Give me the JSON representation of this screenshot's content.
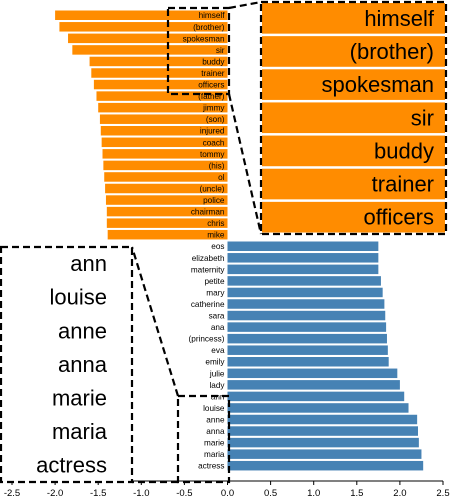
{
  "chart_data": {
    "type": "bar",
    "orientation": "horizontal",
    "colors": {
      "negative": "#ff8c00",
      "positive": "#4682b4",
      "axis": "#000000",
      "inset_border": "#000000"
    },
    "xlim": [
      -2.5,
      2.5
    ],
    "x_ticks": [
      "-2.5",
      "-2.0",
      "-1.5",
      "-1.0",
      "-0.5",
      "0.0",
      "0.5",
      "1.0",
      "1.5",
      "2.0",
      "2.5"
    ],
    "tick_values": [
      -2.5,
      -2.0,
      -1.5,
      -1.0,
      -0.5,
      0.0,
      0.5,
      1.0,
      1.5,
      2.0,
      2.5
    ],
    "categories": [
      "himself",
      "(brother)",
      "spokesman",
      "sir",
      "buddy",
      "trainer",
      "officers",
      "(father)",
      "jimmy",
      "(son)",
      "injured",
      "coach",
      "tommy",
      "(his)",
      "ol",
      "(uncle)",
      "police",
      "chairman",
      "chris",
      "mike",
      "eos",
      "elizabeth",
      "maternity",
      "petite",
      "mary",
      "catherine",
      "sara",
      "ana",
      "(princess)",
      "eva",
      "emily",
      "julie",
      "lady",
      "ann",
      "louise",
      "anne",
      "anna",
      "marie",
      "maria",
      "actress"
    ],
    "values": [
      -2.0,
      -1.95,
      -1.85,
      -1.8,
      -1.6,
      -1.58,
      -1.55,
      -1.52,
      -1.5,
      -1.48,
      -1.47,
      -1.46,
      -1.45,
      -1.44,
      -1.43,
      -1.42,
      -1.41,
      -1.4,
      -1.4,
      -1.39,
      1.75,
      1.75,
      1.75,
      1.78,
      1.8,
      1.82,
      1.83,
      1.84,
      1.85,
      1.86,
      1.87,
      1.97,
      2.0,
      2.05,
      2.1,
      2.2,
      2.21,
      2.22,
      2.25,
      2.27
    ],
    "insets": [
      {
        "name": "top-right",
        "labels": [
          "himself",
          "(brother)",
          "spokesman",
          "sir",
          "buddy",
          "trainer",
          "officers"
        ]
      },
      {
        "name": "bottom-left",
        "labels": [
          "ann",
          "louise",
          "anne",
          "anna",
          "marie",
          "maria",
          "actress"
        ]
      }
    ]
  }
}
